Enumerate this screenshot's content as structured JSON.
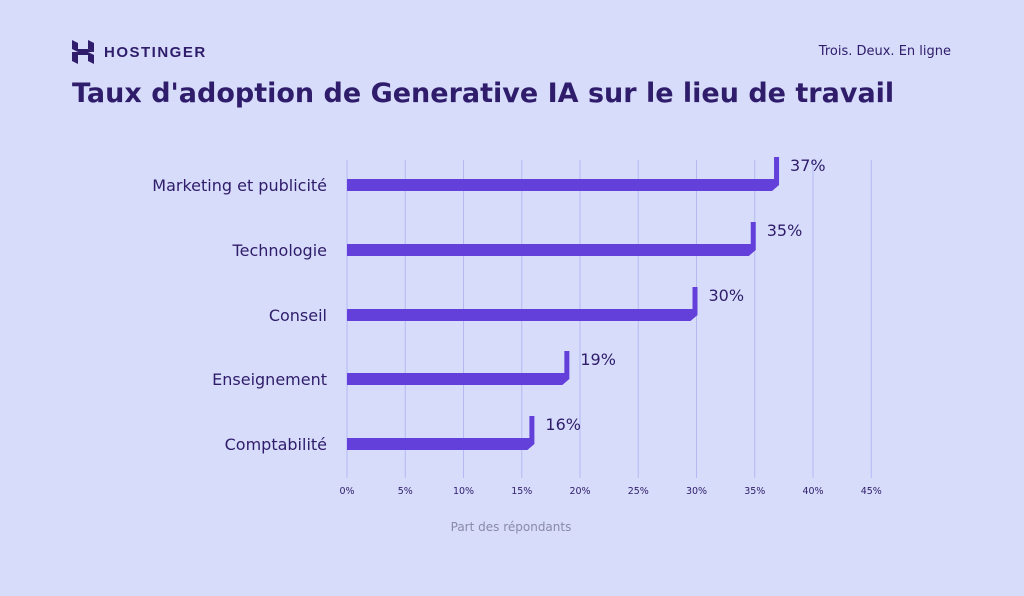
{
  "brand": {
    "name": "HOSTINGER"
  },
  "tagline": "Trois. Deux. En ligne",
  "colors": {
    "background": "#d6dcfa",
    "bar": "#6240d9",
    "text": "#2f1c6a",
    "grid": "#b4b8f5",
    "axis_label": "#8a8aa8"
  },
  "chart_data": {
    "type": "bar",
    "orientation": "horizontal",
    "title": "Taux d'adoption de Generative IA sur le lieu de travail",
    "xlabel": "Part des répondants",
    "ylabel": "",
    "categories": [
      "Marketing et publicité",
      "Technologie",
      "Conseil",
      "Enseignement",
      "Comptabilité"
    ],
    "values": [
      37,
      35,
      30,
      19,
      16
    ],
    "data_labels": [
      "37%",
      "35%",
      "30%",
      "19%",
      "16%"
    ],
    "xlim": [
      0,
      45
    ],
    "xticks": [
      0,
      5,
      10,
      15,
      20,
      25,
      30,
      35,
      40,
      45
    ],
    "xtick_labels": [
      "0%",
      "5%",
      "10%",
      "15%",
      "20%",
      "25%",
      "30%",
      "35%",
      "40%",
      "45%"
    ],
    "grid": "vertical"
  }
}
